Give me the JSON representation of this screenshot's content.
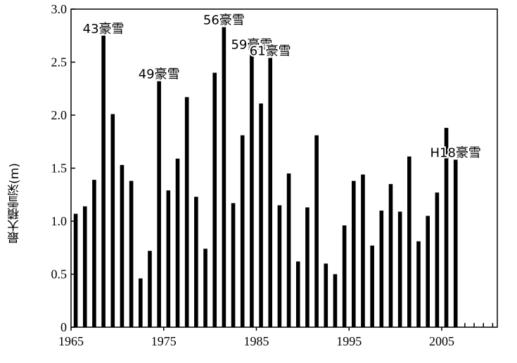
{
  "chart_data": {
    "type": "bar",
    "title": "",
    "xlabel": "",
    "ylabel": "最大積雪深(m)",
    "xlim": [
      1965,
      2011
    ],
    "ylim": [
      0,
      3.0
    ],
    "x_tick_labels": [
      "1965",
      "1975",
      "1985",
      "1995",
      "2005"
    ],
    "y_tick_labels": [
      "0",
      "0.5",
      "1.0",
      "1.5",
      "2.0",
      "2.5",
      "3.0"
    ],
    "grid": false,
    "years": [
      1965,
      1966,
      1967,
      1968,
      1969,
      1970,
      1971,
      1972,
      1973,
      1974,
      1975,
      1976,
      1977,
      1978,
      1979,
      1980,
      1981,
      1982,
      1983,
      1984,
      1985,
      1986,
      1987,
      1988,
      1989,
      1990,
      1991,
      1992,
      1993,
      1994,
      1995,
      1996,
      1997,
      1998,
      1999,
      2000,
      2001,
      2002,
      2003,
      2004,
      2005,
      2006
    ],
    "values": [
      1.07,
      1.14,
      1.39,
      2.75,
      2.01,
      1.53,
      1.38,
      0.46,
      0.72,
      2.32,
      1.29,
      1.59,
      2.17,
      1.23,
      0.74,
      2.4,
      2.83,
      1.17,
      1.81,
      2.6,
      2.11,
      2.54,
      1.15,
      1.45,
      0.62,
      1.13,
      1.81,
      0.6,
      0.5,
      0.96,
      1.38,
      1.44,
      0.77,
      1.1,
      1.35,
      1.09,
      1.61,
      0.81,
      1.05,
      1.27,
      1.88,
      1.58
    ],
    "annotations": [
      {
        "year": 1968,
        "text": "43豪雪"
      },
      {
        "year": 1974,
        "text": "49豪雪"
      },
      {
        "year": 1981,
        "text": "56豪雪"
      },
      {
        "year": 1984,
        "text": "59豪雪"
      },
      {
        "year": 1986,
        "text": "61豪雪"
      },
      {
        "year": 2006,
        "text": "H18豪雪"
      }
    ]
  }
}
